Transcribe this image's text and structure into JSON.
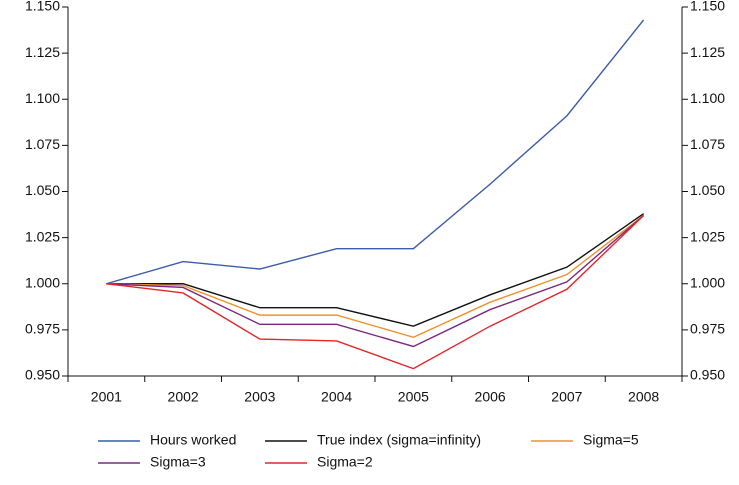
{
  "chart_data": {
    "type": "line",
    "categories": [
      "2001",
      "2002",
      "2003",
      "2004",
      "2005",
      "2006",
      "2007",
      "2008"
    ],
    "series": [
      {
        "name": "Hours worked",
        "color": "#3b5ca8",
        "values": [
          1.0,
          1.012,
          1.008,
          1.019,
          1.019,
          1.054,
          1.091,
          1.143
        ]
      },
      {
        "name": "True index (sigma=infinity)",
        "color": "#111111",
        "values": [
          1.0,
          1.0,
          0.987,
          0.987,
          0.977,
          0.994,
          1.009,
          1.038
        ]
      },
      {
        "name": "Sigma=5",
        "color": "#f0922b",
        "values": [
          1.0,
          0.999,
          0.983,
          0.983,
          0.971,
          0.99,
          1.005,
          1.037
        ]
      },
      {
        "name": "Sigma=3",
        "color": "#7b2a80",
        "values": [
          1.0,
          0.998,
          0.978,
          0.978,
          0.966,
          0.986,
          1.001,
          1.037
        ]
      },
      {
        "name": "Sigma=2",
        "color": "#e2262b",
        "values": [
          1.0,
          0.995,
          0.97,
          0.969,
          0.954,
          0.977,
          0.997,
          1.037
        ]
      }
    ],
    "ylim": [
      0.95,
      1.15
    ],
    "yticks": [
      {
        "value": 0.95,
        "label": "0.950"
      },
      {
        "value": 0.975,
        "label": "0.975"
      },
      {
        "value": 1.0,
        "label": "1.000"
      },
      {
        "value": 1.025,
        "label": "1.025"
      },
      {
        "value": 1.05,
        "label": "1.050"
      },
      {
        "value": 1.075,
        "label": "1.075"
      },
      {
        "value": 1.1,
        "label": "1.100"
      },
      {
        "value": 1.125,
        "label": "1.125"
      },
      {
        "value": 1.15,
        "label": "1.150"
      }
    ],
    "y2lim": [
      0.95,
      1.15
    ],
    "y2ticks": [
      {
        "value": 0.95,
        "label": "0.950"
      },
      {
        "value": 0.975,
        "label": "0.975"
      },
      {
        "value": 1.0,
        "label": "1.000"
      },
      {
        "value": 1.025,
        "label": "1.025"
      },
      {
        "value": 1.05,
        "label": "1.050"
      },
      {
        "value": 1.075,
        "label": "1.075"
      },
      {
        "value": 1.1,
        "label": "1.100"
      },
      {
        "value": 1.125,
        "label": "1.125"
      },
      {
        "value": 1.15,
        "label": "1.150"
      }
    ],
    "grid": false
  }
}
